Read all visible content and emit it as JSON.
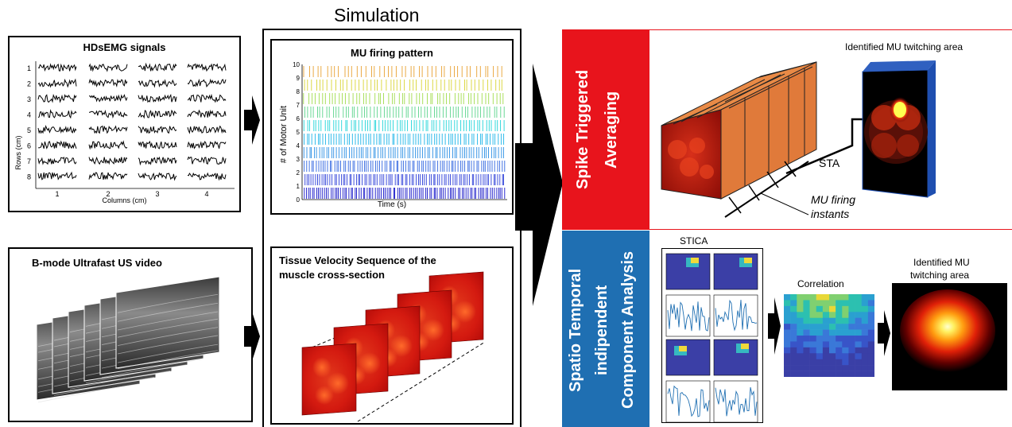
{
  "simulation": {
    "title": "Simulation"
  },
  "hdsemg": {
    "title": "HDsEMG signals",
    "rows_label": "Rows (cm)",
    "columns_label": "Columns (cm)",
    "row_ticks": [
      "1",
      "2",
      "3",
      "4",
      "5",
      "6",
      "7",
      "8"
    ],
    "col_ticks": [
      "1",
      "2",
      "3",
      "4"
    ]
  },
  "bmode": {
    "title": "B-mode Ultrafast US video"
  },
  "mu_firing": {
    "title": "MU firing pattern",
    "ylabel": "# of Motor Unit",
    "xlabel": "Time (s)",
    "y_ticks": [
      "0",
      "1",
      "2",
      "3",
      "4",
      "5",
      "6",
      "7",
      "8",
      "9",
      "10"
    ]
  },
  "tissue": {
    "title_line1": "Tissue Velocity Sequence of the",
    "title_line2": "muscle cross-section"
  },
  "sta": {
    "panel_label_line1": "Spike Triggered",
    "panel_label_line2": "Averaging",
    "identified_label": "Identified MU twitching area",
    "sta_label": "STA",
    "firing_line1": "MU firing",
    "firing_line2": "instants",
    "color": "#e8141c"
  },
  "stica": {
    "panel_label_line1": "Spatio Temporal",
    "panel_label_line2": "indipendent",
    "panel_label_line3": "Component Analysis",
    "stica_label": "STICA",
    "correlation_label": "Correlation",
    "identified_line1": "Identified MU",
    "identified_line2": "twitching area",
    "color": "#1f6fb2"
  }
}
